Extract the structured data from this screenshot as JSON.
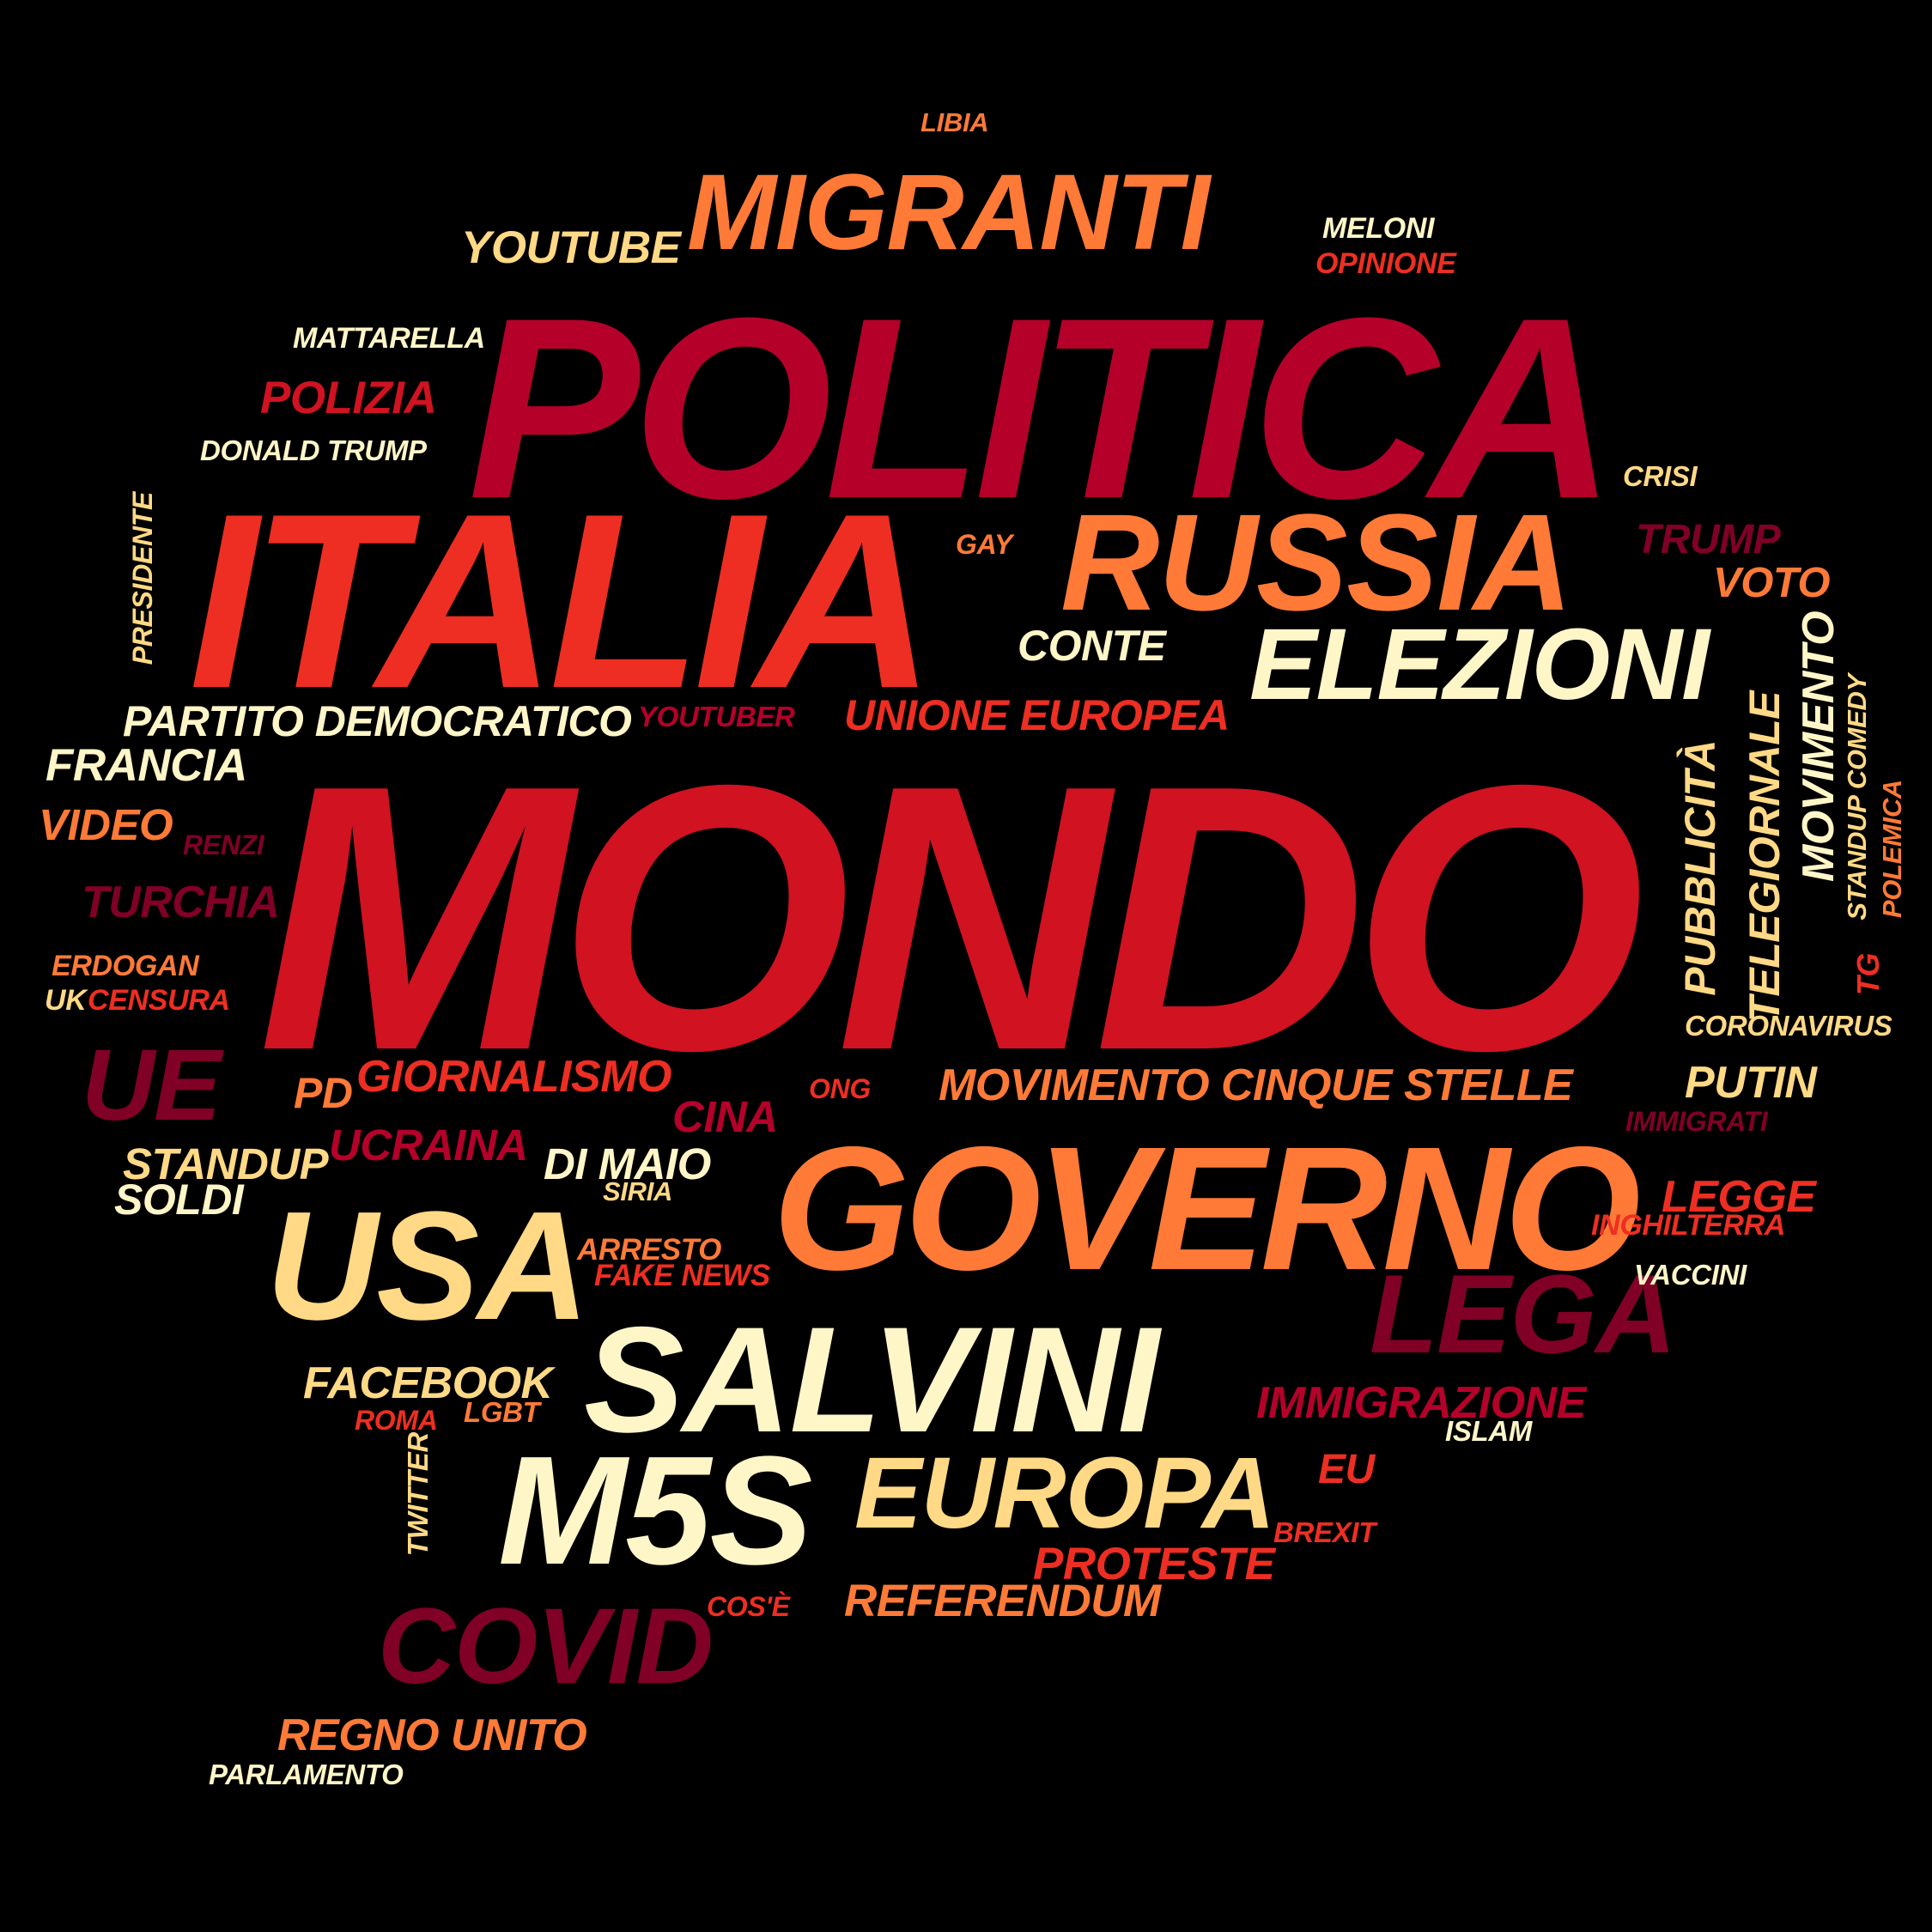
{
  "cloud": {
    "colors": {
      "cream": "#fff6c8",
      "sand": "#ffd985",
      "orange": "#ff7a37",
      "red": "#ee2e22",
      "crimson": "#d01221",
      "wine": "#b5002a",
      "maroon": "#800026",
      "background": "#000000"
    },
    "words": {
      "mondo": "MONDO",
      "politica": "POLITICA",
      "italia": "ITALIA",
      "russia": "RUSSIA",
      "governo": "GOVERNO",
      "salvini": "SALVINI",
      "usa": "USA",
      "m5s": "M5S",
      "migranti": "MIGRANTI",
      "europa": "EUROPA",
      "elezioni": "ELEZIONI",
      "lega": "LEGA",
      "covid": "COVID",
      "ue": "UE",
      "libia": "LIBIA",
      "youtube": "YOUTUBE",
      "meloni": "MELONI",
      "opinione": "OPINIONE",
      "mattarella": "MATTARELLA",
      "polizia": "POLIZIA",
      "donald_trump": "DONALD TRUMP",
      "crisi": "CRISI",
      "presidente": "PRESIDENTE",
      "gay": "GAY",
      "trump": "TRUMP",
      "voto": "VOTO",
      "conte": "CONTE",
      "partito_democratico": "PARTITO DEMOCRATICO",
      "youtuber": "YOUTUBER",
      "unione_europea": "UNIONE EUROPEA",
      "francia": "FRANCIA",
      "video": "VIDEO",
      "renzi": "RENZI",
      "turchia": "TURCHIA",
      "erdogan": "ERDOGAN",
      "uk": "UK",
      "censura": "CENSURA",
      "movimento": "MOVIMENTO",
      "telegiornale": "TELEGIORNALE",
      "pubblicita": "PUBBLICITÀ",
      "standup_comedy": "STANDUP COMEDY",
      "polemica": "POLEMICA",
      "tg": "TG",
      "coronavirus": "CORONAVIRUS",
      "pd": "PD",
      "giornalismo": "GIORNALISMO",
      "ong": "ONG",
      "movimento_cinque_stelle": "MOVIMENTO CINQUE STELLE",
      "putin": "PUTIN",
      "cina": "CINA",
      "immigrati": "IMMIGRATI",
      "ucraina": "UCRAINA",
      "standup": "STANDUP",
      "di_maio": "DI MAIO",
      "soldi": "SOLDI",
      "siria": "SIRIA",
      "legge": "LEGGE",
      "inghilterra": "INGHILTERRA",
      "arresto": "ARRESTO",
      "fake_news": "FAKE NEWS",
      "vaccini": "VACCINI",
      "facebook": "FACEBOOK",
      "roma": "ROMA",
      "lgbt": "LGBT",
      "immigrazione": "IMMIGRAZIONE",
      "islam": "ISLAM",
      "twitter": "TWITTER",
      "eu": "EU",
      "brexit": "BREXIT",
      "proteste": "PROTESTE",
      "cose": "COS'È",
      "referendum": "REFERENDUM",
      "regno_unito": "REGNO UNITO",
      "parlamento": "PARLAMENTO"
    }
  }
}
